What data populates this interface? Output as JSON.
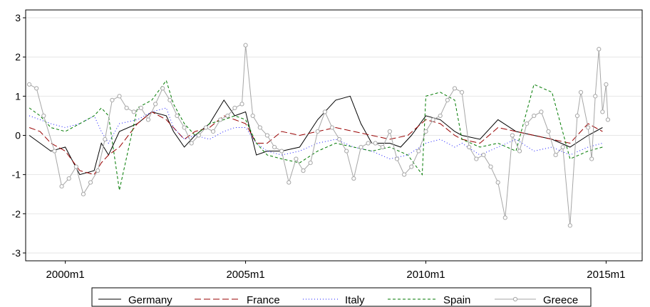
{
  "chart_data": {
    "type": "line",
    "x_axis": {
      "ticks": [
        {
          "label": "2000m1",
          "value": 2000.0
        },
        {
          "label": "2005m1",
          "value": 2005.0
        },
        {
          "label": "2010m1",
          "value": 2010.0
        },
        {
          "label": "2015m1",
          "value": 2015.0
        }
      ],
      "range": [
        1998.9,
        2016.0
      ]
    },
    "y_axis": {
      "ticks": [
        "-3",
        "-2",
        "-1",
        "0",
        "1",
        "2",
        "3"
      ],
      "range": [
        -3.2,
        3.2
      ]
    },
    "grid": "horizontal",
    "legend_position": "bottom",
    "series": [
      {
        "name": "Germany",
        "color": "#000000",
        "style": "solid",
        "points": [
          [
            1999.0,
            0.0
          ],
          [
            1999.3,
            -0.2
          ],
          [
            1999.6,
            -0.4
          ],
          [
            2000.0,
            -0.3
          ],
          [
            2000.4,
            -1.0
          ],
          [
            2000.8,
            -0.9
          ],
          [
            2001.0,
            -0.2
          ],
          [
            2001.2,
            -0.5
          ],
          [
            2001.5,
            0.1
          ],
          [
            2002.0,
            0.3
          ],
          [
            2002.4,
            0.6
          ],
          [
            2002.8,
            0.5
          ],
          [
            2003.0,
            0.1
          ],
          [
            2003.3,
            -0.3
          ],
          [
            2003.6,
            0.0
          ],
          [
            2004.0,
            0.3
          ],
          [
            2004.4,
            0.9
          ],
          [
            2004.7,
            0.5
          ],
          [
            2005.0,
            0.6
          ],
          [
            2005.3,
            -0.5
          ],
          [
            2005.6,
            -0.4
          ],
          [
            2006.0,
            -0.4
          ],
          [
            2006.5,
            -0.3
          ],
          [
            2007.0,
            0.4
          ],
          [
            2007.5,
            0.9
          ],
          [
            2007.9,
            1.0
          ],
          [
            2008.2,
            0.3
          ],
          [
            2008.5,
            -0.2
          ],
          [
            2009.0,
            -0.2
          ],
          [
            2009.3,
            -0.3
          ],
          [
            2009.6,
            0.0
          ],
          [
            2010.0,
            0.5
          ],
          [
            2010.4,
            0.4
          ],
          [
            2010.8,
            0.1
          ],
          [
            2011.0,
            0.0
          ],
          [
            2011.5,
            -0.1
          ],
          [
            2012.0,
            0.4
          ],
          [
            2012.5,
            0.1
          ],
          [
            2013.0,
            0.0
          ],
          [
            2013.5,
            -0.1
          ],
          [
            2014.0,
            -0.3
          ],
          [
            2014.5,
            0.0
          ],
          [
            2014.9,
            0.2
          ]
        ]
      },
      {
        "name": "France",
        "color": "#990000",
        "style": "longdash",
        "points": [
          [
            1999.0,
            0.2
          ],
          [
            1999.3,
            0.1
          ],
          [
            1999.6,
            -0.2
          ],
          [
            2000.0,
            -0.4
          ],
          [
            2000.4,
            -0.9
          ],
          [
            2000.8,
            -1.0
          ],
          [
            2001.0,
            -0.7
          ],
          [
            2001.2,
            -0.5
          ],
          [
            2001.5,
            -0.3
          ],
          [
            2002.0,
            0.3
          ],
          [
            2002.4,
            0.6
          ],
          [
            2002.8,
            0.4
          ],
          [
            2003.0,
            0.2
          ],
          [
            2003.3,
            -0.1
          ],
          [
            2003.6,
            0.1
          ],
          [
            2004.0,
            0.2
          ],
          [
            2004.4,
            0.5
          ],
          [
            2004.7,
            0.4
          ],
          [
            2005.0,
            0.3
          ],
          [
            2005.3,
            -0.2
          ],
          [
            2005.6,
            -0.2
          ],
          [
            2006.0,
            0.1
          ],
          [
            2006.5,
            0.0
          ],
          [
            2007.0,
            0.1
          ],
          [
            2007.5,
            0.2
          ],
          [
            2008.0,
            0.1
          ],
          [
            2008.5,
            0.0
          ],
          [
            2009.0,
            -0.1
          ],
          [
            2009.5,
            0.0
          ],
          [
            2010.0,
            0.4
          ],
          [
            2010.4,
            0.3
          ],
          [
            2010.8,
            0.0
          ],
          [
            2011.0,
            -0.1
          ],
          [
            2011.5,
            -0.2
          ],
          [
            2012.0,
            0.2
          ],
          [
            2012.5,
            0.1
          ],
          [
            2013.0,
            0.0
          ],
          [
            2013.5,
            -0.1
          ],
          [
            2014.0,
            -0.2
          ],
          [
            2014.5,
            0.3
          ],
          [
            2014.9,
            0.1
          ]
        ]
      },
      {
        "name": "Italy",
        "color": "#1a1aff",
        "style": "dot",
        "points": [
          [
            1999.0,
            0.5
          ],
          [
            1999.3,
            0.4
          ],
          [
            1999.6,
            0.3
          ],
          [
            2000.0,
            0.2
          ],
          [
            2000.4,
            0.3
          ],
          [
            2000.8,
            0.5
          ],
          [
            2001.0,
            0.1
          ],
          [
            2001.2,
            -0.2
          ],
          [
            2001.5,
            0.3
          ],
          [
            2002.0,
            0.4
          ],
          [
            2002.4,
            0.6
          ],
          [
            2002.8,
            0.7
          ],
          [
            2003.0,
            0.2
          ],
          [
            2003.3,
            -0.1
          ],
          [
            2003.6,
            0.0
          ],
          [
            2004.0,
            -0.1
          ],
          [
            2004.4,
            0.1
          ],
          [
            2004.7,
            0.2
          ],
          [
            2005.0,
            0.2
          ],
          [
            2005.3,
            -0.2
          ],
          [
            2005.6,
            -0.4
          ],
          [
            2006.0,
            -0.5
          ],
          [
            2006.5,
            -0.4
          ],
          [
            2007.0,
            -0.2
          ],
          [
            2007.5,
            -0.1
          ],
          [
            2008.0,
            -0.3
          ],
          [
            2008.5,
            -0.4
          ],
          [
            2009.0,
            -0.6
          ],
          [
            2009.5,
            -0.5
          ],
          [
            2010.0,
            -0.2
          ],
          [
            2010.4,
            -0.1
          ],
          [
            2010.8,
            -0.3
          ],
          [
            2011.0,
            -0.2
          ],
          [
            2011.5,
            -0.5
          ],
          [
            2012.0,
            -0.3
          ],
          [
            2012.5,
            -0.1
          ],
          [
            2013.0,
            -0.4
          ],
          [
            2013.5,
            -0.3
          ],
          [
            2014.0,
            -0.5
          ],
          [
            2014.5,
            -0.3
          ],
          [
            2014.9,
            -0.2
          ]
        ]
      },
      {
        "name": "Spain",
        "color": "#007a00",
        "style": "dash",
        "points": [
          [
            1999.0,
            0.7
          ],
          [
            1999.3,
            0.5
          ],
          [
            1999.6,
            0.2
          ],
          [
            2000.0,
            0.1
          ],
          [
            2000.4,
            0.3
          ],
          [
            2000.8,
            0.5
          ],
          [
            2001.0,
            0.7
          ],
          [
            2001.2,
            0.5
          ],
          [
            2001.5,
            -1.4
          ],
          [
            2002.0,
            0.7
          ],
          [
            2002.4,
            0.9
          ],
          [
            2002.8,
            1.4
          ],
          [
            2003.0,
            0.8
          ],
          [
            2003.3,
            0.3
          ],
          [
            2003.6,
            0.0
          ],
          [
            2004.0,
            0.3
          ],
          [
            2004.4,
            0.4
          ],
          [
            2004.7,
            0.5
          ],
          [
            2005.0,
            0.4
          ],
          [
            2005.3,
            -0.2
          ],
          [
            2005.6,
            -0.5
          ],
          [
            2006.0,
            -0.6
          ],
          [
            2006.5,
            -0.7
          ],
          [
            2007.0,
            -0.4
          ],
          [
            2007.5,
            -0.2
          ],
          [
            2008.0,
            -0.3
          ],
          [
            2008.5,
            -0.4
          ],
          [
            2009.0,
            -0.3
          ],
          [
            2009.5,
            -0.5
          ],
          [
            2009.9,
            -1.0
          ],
          [
            2010.0,
            1.0
          ],
          [
            2010.4,
            1.1
          ],
          [
            2010.8,
            0.9
          ],
          [
            2011.0,
            -0.1
          ],
          [
            2011.5,
            -0.3
          ],
          [
            2012.0,
            -0.2
          ],
          [
            2012.5,
            -0.4
          ],
          [
            2013.0,
            1.3
          ],
          [
            2013.5,
            1.1
          ],
          [
            2014.0,
            -0.6
          ],
          [
            2014.5,
            -0.4
          ],
          [
            2014.9,
            -0.3
          ]
        ]
      },
      {
        "name": "Greece",
        "color": "#a6a6a6",
        "style": "circles",
        "points": [
          [
            1999.0,
            1.3
          ],
          [
            1999.2,
            1.2
          ],
          [
            1999.4,
            0.5
          ],
          [
            1999.7,
            -0.4
          ],
          [
            1999.9,
            -1.3
          ],
          [
            2000.1,
            -1.1
          ],
          [
            2000.3,
            -0.8
          ],
          [
            2000.5,
            -1.5
          ],
          [
            2000.7,
            -1.2
          ],
          [
            2000.9,
            -0.9
          ],
          [
            2001.1,
            -0.1
          ],
          [
            2001.3,
            0.9
          ],
          [
            2001.5,
            1.0
          ],
          [
            2001.7,
            0.7
          ],
          [
            2001.9,
            0.6
          ],
          [
            2002.1,
            0.7
          ],
          [
            2002.3,
            0.4
          ],
          [
            2002.5,
            0.8
          ],
          [
            2002.7,
            1.2
          ],
          [
            2002.9,
            0.9
          ],
          [
            2003.1,
            0.5
          ],
          [
            2003.3,
            0.2
          ],
          [
            2003.5,
            -0.2
          ],
          [
            2003.7,
            0.0
          ],
          [
            2003.9,
            0.2
          ],
          [
            2004.1,
            0.1
          ],
          [
            2004.3,
            0.4
          ],
          [
            2004.5,
            0.5
          ],
          [
            2004.7,
            0.7
          ],
          [
            2004.9,
            0.8
          ],
          [
            2005.0,
            2.3
          ],
          [
            2005.2,
            0.5
          ],
          [
            2005.4,
            0.2
          ],
          [
            2005.6,
            0.0
          ],
          [
            2005.8,
            -0.3
          ],
          [
            2006.0,
            -0.4
          ],
          [
            2006.2,
            -1.2
          ],
          [
            2006.4,
            -0.6
          ],
          [
            2006.6,
            -0.9
          ],
          [
            2006.8,
            -0.7
          ],
          [
            2007.0,
            0.1
          ],
          [
            2007.2,
            0.6
          ],
          [
            2007.4,
            0.2
          ],
          [
            2007.6,
            -0.1
          ],
          [
            2007.8,
            -0.4
          ],
          [
            2008.0,
            -1.1
          ],
          [
            2008.2,
            -0.3
          ],
          [
            2008.4,
            -0.2
          ],
          [
            2008.6,
            -0.2
          ],
          [
            2008.8,
            -0.3
          ],
          [
            2009.0,
            0.1
          ],
          [
            2009.2,
            -0.6
          ],
          [
            2009.4,
            -1.0
          ],
          [
            2009.6,
            -0.8
          ],
          [
            2009.8,
            -0.4
          ],
          [
            2010.0,
            0.1
          ],
          [
            2010.2,
            0.4
          ],
          [
            2010.4,
            0.5
          ],
          [
            2010.6,
            0.9
          ],
          [
            2010.8,
            1.2
          ],
          [
            2011.0,
            1.1
          ],
          [
            2011.2,
            -0.3
          ],
          [
            2011.4,
            -0.6
          ],
          [
            2011.6,
            -0.5
          ],
          [
            2011.8,
            -0.8
          ],
          [
            2012.0,
            -1.2
          ],
          [
            2012.2,
            -2.1
          ],
          [
            2012.4,
            0.0
          ],
          [
            2012.6,
            -0.4
          ],
          [
            2012.8,
            0.3
          ],
          [
            2013.0,
            0.5
          ],
          [
            2013.2,
            0.6
          ],
          [
            2013.4,
            0.1
          ],
          [
            2013.6,
            -0.5
          ],
          [
            2013.8,
            -0.3
          ],
          [
            2014.0,
            -2.3
          ],
          [
            2014.2,
            0.5
          ],
          [
            2014.3,
            1.1
          ],
          [
            2014.5,
            0.2
          ],
          [
            2014.6,
            -0.6
          ],
          [
            2014.7,
            1.0
          ],
          [
            2014.8,
            2.2
          ],
          [
            2014.9,
            0.6
          ],
          [
            2015.0,
            1.3
          ],
          [
            2015.05,
            0.4
          ]
        ]
      }
    ]
  }
}
